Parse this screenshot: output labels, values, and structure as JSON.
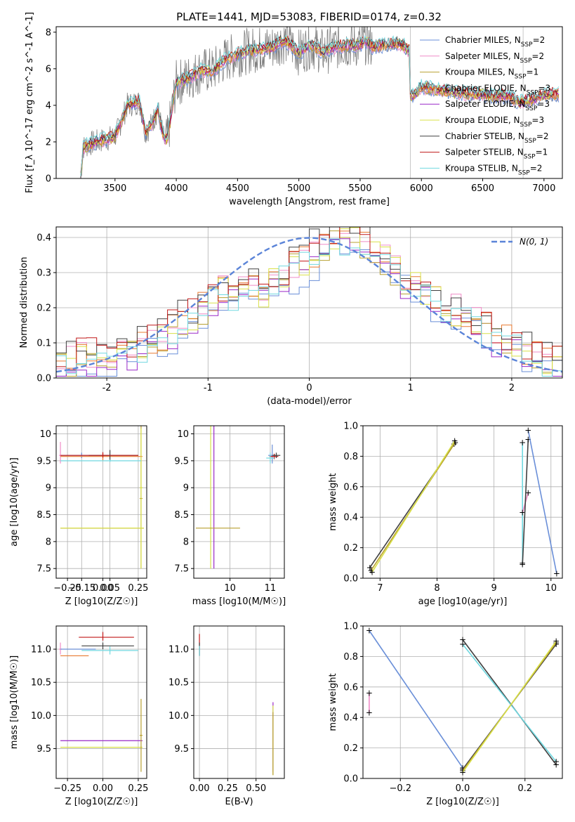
{
  "colors": {
    "chabrier_miles": "#6a8fd8",
    "salpeter_miles": "#f08cc8",
    "kroupa_miles": "#b8a030",
    "chabrier_elodie": "#e87a30",
    "salpeter_elodie": "#9a28c8",
    "kroupa_elodie": "#d8e048",
    "chabrier_stelib": "#404040",
    "salpeter_stelib": "#c01818",
    "kroupa_stelib": "#70d8e0",
    "data": "#808080",
    "normal": "#5b84d8"
  },
  "chart_data": [
    {
      "id": "spectrum",
      "type": "line",
      "title": "PLATE=1441, MJD=53083, FIBERID=0174, z=0.32",
      "xlabel": "wavelength [Angstrom, rest frame]",
      "ylabel": "Flux [f_λ 10^-17 erg cm^-2 s^-1 A^-1]",
      "xlim": [
        3020,
        7150
      ],
      "ylim": [
        0,
        8.3
      ],
      "xticks": [
        3500,
        4000,
        4500,
        5000,
        5500,
        6000,
        6500,
        7000
      ],
      "yticks": [
        0,
        2,
        4,
        6,
        8
      ],
      "grid": false,
      "legend": "right",
      "legend_entries": [
        "Chabrier MILES, N_SSP=2",
        "Salpeter MILES, N_SSP=2",
        "Kroupa MILES, N_SSP=1",
        "Chabrier ELODIE, N_SSP=3",
        "Salpeter ELODIE, N_SSP=3",
        "Kroupa ELODIE, N_SSP=3",
        "Chabrier STELIB, N_SSP=2",
        "Salpeter STELIB, N_SSP=1",
        "Kroupa STELIB, N_SSP=2"
      ],
      "model_envelope": {
        "x": [
          3220,
          3240,
          3300,
          3400,
          3500,
          3550,
          3600,
          3700,
          3750,
          3800,
          3850,
          3900,
          3930,
          3970,
          4000,
          4100,
          4200,
          4300,
          4400,
          4500,
          4600,
          4700,
          4800,
          4850,
          4900,
          5000,
          5100,
          5200,
          5300,
          5400,
          5500,
          5550,
          5600,
          5700,
          5800,
          5850,
          5900,
          5910,
          5930,
          6000,
          6100,
          6200,
          6300,
          6400,
          6500,
          6600,
          6700,
          6800,
          6900,
          7000
        ],
        "y": [
          0,
          1.7,
          1.9,
          2.1,
          2.3,
          3.1,
          4.0,
          4.2,
          2.5,
          3.0,
          3.8,
          2.1,
          2.2,
          4.0,
          5.2,
          5.5,
          5.9,
          5.9,
          6.5,
          6.8,
          7.0,
          7.1,
          7.2,
          7.5,
          7.5,
          6.9,
          7.3,
          6.9,
          7.2,
          7.3,
          7.3,
          7.5,
          7.2,
          7.3,
          7.4,
          7.3,
          7.0,
          4.5,
          4.5,
          5.0,
          4.9,
          4.8,
          4.7,
          4.6,
          4.6,
          4.5,
          4.5,
          4.2,
          4.3,
          4.6
        ]
      },
      "masked_x": [
        5910,
        6830
      ]
    },
    {
      "id": "residuals",
      "type": "histogram",
      "xlabel": "(data-model)/error",
      "ylabel": "Normed distribution",
      "xlim": [
        -2.5,
        2.5
      ],
      "ylim": [
        0,
        0.43
      ],
      "xticks": [
        -2,
        -1,
        0,
        1,
        2
      ],
      "yticks": [
        0.0,
        0.1,
        0.2,
        0.3,
        0.4
      ],
      "grid": true,
      "legend": "top-right",
      "normal_label": "N(0, 1)",
      "bin_width": 0.1,
      "x_start": -2.5,
      "base_profile": [
        0.04,
        0.04,
        0.06,
        0.05,
        0.05,
        0.06,
        0.06,
        0.07,
        0.09,
        0.1,
        0.11,
        0.13,
        0.15,
        0.17,
        0.19,
        0.22,
        0.24,
        0.23,
        0.25,
        0.26,
        0.24,
        0.27,
        0.29,
        0.31,
        0.33,
        0.35,
        0.36,
        0.38,
        0.4,
        0.39,
        0.38,
        0.35,
        0.33,
        0.3,
        0.28,
        0.26,
        0.24,
        0.22,
        0.2,
        0.18,
        0.17,
        0.15,
        0.14,
        0.12,
        0.1,
        0.09,
        0.07,
        0.06,
        0.05,
        0.05
      ]
    },
    {
      "id": "age_vs_Z",
      "type": "scatter",
      "xlabel": "Z [log10(Z/Z☉)]",
      "ylabel": "age  [log10(age/yr)]",
      "xlim": [
        -0.33,
        0.31
      ],
      "ylim": [
        7.32,
        10.15
      ],
      "xticks": [
        -0.25,
        0.0,
        0.25
      ],
      "xtick_labels": [
        "−0.25",
        "0.00",
        "0.25"
      ],
      "minor_xticks": [
        -0.25,
        -0.15,
        0.0,
        0.05,
        0.25
      ],
      "minor_xtick_labels": [
        "−0.25",
        "−0.15",
        "0.00",
        "0.05",
        "0.25"
      ],
      "yticks": [
        7.5,
        8.0,
        8.5,
        9.0,
        9.5,
        10.0
      ],
      "grid": true
    },
    {
      "id": "age_vs_mass",
      "type": "scatter",
      "xlabel": "mass [log10(M/M☉)]",
      "xlim": [
        9.1,
        11.35
      ],
      "ylim": [
        7.32,
        10.15
      ],
      "xticks": [
        10,
        11
      ],
      "yticks": [
        7.5,
        8.0,
        8.5,
        9.0,
        9.5,
        10.0
      ],
      "grid": true
    },
    {
      "id": "weight_vs_age",
      "type": "line",
      "xlabel": "age  [log10(age/yr)]",
      "ylabel": "mass weight",
      "xlim": [
        6.7,
        10.2
      ],
      "ylim": [
        0,
        1
      ],
      "xticks": [
        7,
        8,
        9,
        10
      ],
      "yticks": [
        0.0,
        0.2,
        0.4,
        0.6,
        0.8,
        1.0
      ],
      "grid": true
    },
    {
      "id": "mass_vs_Z",
      "type": "scatter",
      "xlabel": "Z [log10(Z/Z☉)]",
      "ylabel": "mass [log10(M/M☉)]",
      "xlim": [
        -0.33,
        0.31
      ],
      "ylim": [
        9.05,
        11.35
      ],
      "xticks": [
        -0.25,
        0.0,
        0.25
      ],
      "xtick_labels": [
        "−0.25",
        "0.00",
        "0.25"
      ],
      "yticks": [
        9.5,
        10.0,
        10.5,
        11.0
      ],
      "grid": true
    },
    {
      "id": "mass_vs_ebv",
      "type": "scatter",
      "xlabel": "E(B-V)",
      "xlim": [
        -0.05,
        0.75
      ],
      "ylim": [
        9.05,
        11.35
      ],
      "xticks": [
        0.0,
        0.25,
        0.5
      ],
      "xtick_labels": [
        "0.00",
        "0.25",
        "0.50"
      ],
      "yticks": [
        9.5,
        10.0,
        10.5,
        11.0
      ],
      "grid": true
    },
    {
      "id": "weight_vs_Z",
      "type": "line",
      "xlabel": "Z [log10(Z/Z☉)]",
      "ylabel": "mass weight",
      "xlim": [
        -0.32,
        0.32
      ],
      "ylim": [
        0,
        1
      ],
      "xticks": [
        -0.2,
        0.0,
        0.2
      ],
      "xtick_labels": [
        "−0.2",
        "0.0",
        "0.2"
      ],
      "yticks": [
        0.0,
        0.2,
        0.4,
        0.6,
        0.8,
        1.0
      ],
      "grid": true
    }
  ]
}
